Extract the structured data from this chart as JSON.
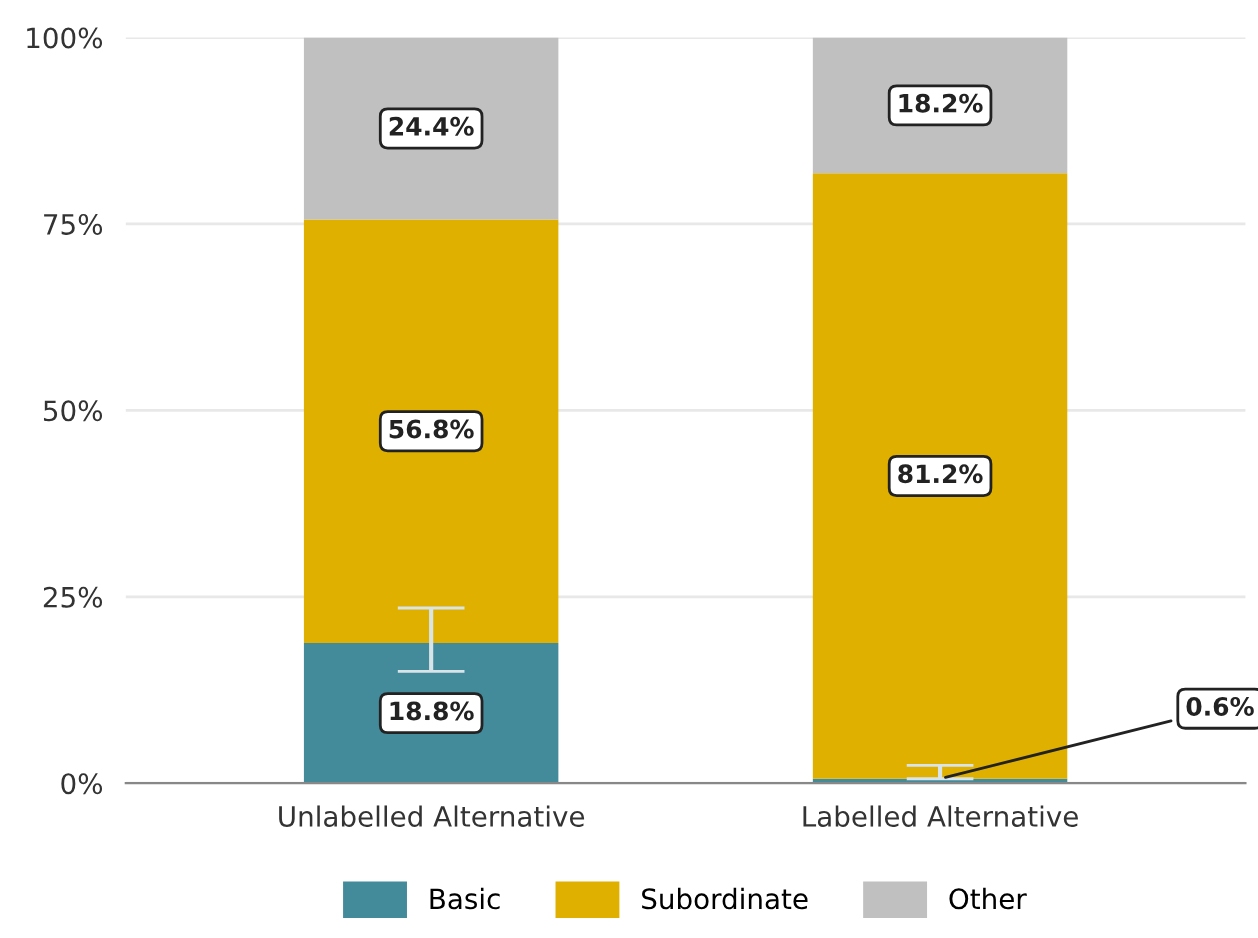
{
  "chart_data": {
    "type": "bar",
    "stacked": true,
    "categories": [
      "Unlabelled Alternative",
      "Labelled Alternative"
    ],
    "series": [
      {
        "name": "Basic",
        "color": "#438a9b",
        "values": [
          18.8,
          0.6
        ],
        "value_labels": [
          "18.8%",
          "0.6%"
        ],
        "errors": [
          [
            15.0,
            23.5
          ],
          [
            0.6,
            2.4
          ]
        ]
      },
      {
        "name": "Subordinate",
        "color": "#e0b000",
        "values": [
          56.8,
          81.2
        ],
        "value_labels": [
          "56.8%",
          "81.2%"
        ]
      },
      {
        "name": "Other",
        "color": "#c0c0c0",
        "values": [
          24.4,
          18.2
        ],
        "value_labels": [
          "24.4%",
          "18.2%"
        ]
      }
    ],
    "ylim": [
      0,
      100
    ],
    "yticks": [
      {
        "value": 0,
        "label": "0%"
      },
      {
        "value": 25,
        "label": "25%"
      },
      {
        "value": 50,
        "label": "50%"
      },
      {
        "value": 75,
        "label": "75%"
      },
      {
        "value": 100,
        "label": "100%"
      }
    ],
    "grid": "y",
    "legend": "bottom"
  }
}
